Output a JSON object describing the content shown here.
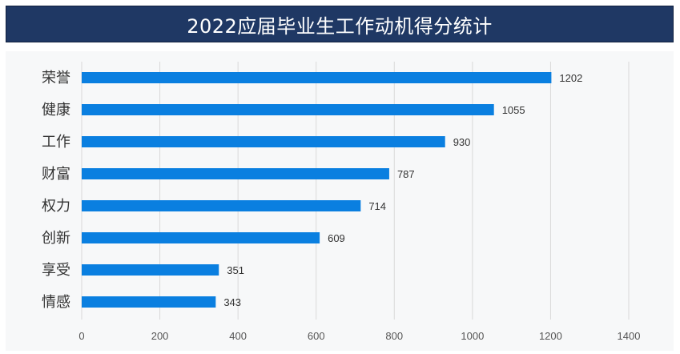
{
  "chart_data": {
    "type": "bar",
    "orientation": "horizontal",
    "title": "2022应届毕业生工作动机得分统计",
    "categories": [
      "荣誉",
      "健康",
      "工作",
      "财富",
      "权力",
      "创新",
      "享受",
      "情感"
    ],
    "values": [
      1202,
      1055,
      930,
      787,
      714,
      609,
      351,
      343
    ],
    "xlim": [
      0,
      1400
    ],
    "xticks": [
      0,
      200,
      400,
      600,
      800,
      1000,
      1200,
      1400
    ],
    "grid": true,
    "data_labels": true,
    "bar_color": "#0a7fe0",
    "title_bg": "#1f3864",
    "gridline_color": "#d9d9d9"
  }
}
